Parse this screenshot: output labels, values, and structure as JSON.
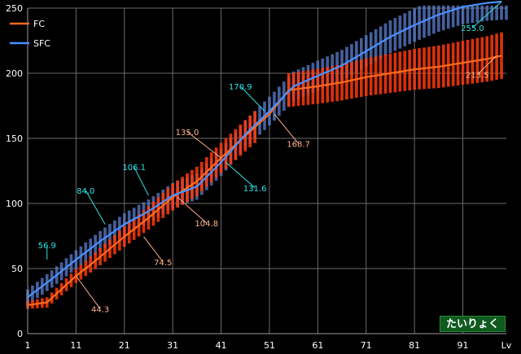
{
  "chart_data": {
    "type": "line",
    "xlabel": "Lv",
    "ylim": [
      0,
      250
    ],
    "xlim": [
      1,
      100
    ],
    "x_ticks": [
      1,
      11,
      21,
      31,
      41,
      51,
      61,
      71,
      81,
      91
    ],
    "y_ticks": [
      0,
      50,
      100,
      150,
      200,
      250
    ],
    "grid": true,
    "legend": "top-left",
    "badge": "たいりょく",
    "series": [
      {
        "name": "FC",
        "color": "#ff6a1e",
        "band_color": "#ff3a0a",
        "x": [
          1,
          5,
          11,
          15,
          21,
          26,
          31,
          36,
          41,
          46,
          51,
          55,
          61,
          66,
          71,
          76,
          81,
          86,
          91,
          96,
          99
        ],
        "y": [
          22,
          24,
          44.3,
          56,
          74.5,
          89,
          104.8,
          117,
          135,
          152,
          168.7,
          187,
          190,
          193,
          197,
          200,
          203,
          205,
          208,
          211,
          213.5
        ],
        "band_x": [
          1,
          48
        ],
        "band_x2": [
          55,
          99
        ],
        "band_half_width": [
          3,
          11,
          14,
          18
        ]
      },
      {
        "name": "SFC",
        "color": "#4a90ff",
        "band_color": "#5b7fd0",
        "x": [
          1,
          6,
          11,
          16,
          21,
          26,
          31,
          36,
          41,
          46,
          51,
          56,
          61,
          66,
          71,
          76,
          81,
          86,
          91,
          96,
          99
        ],
        "y": [
          28,
          42,
          56.9,
          71,
          84,
          94,
          106.1,
          113,
          131.6,
          153,
          170.9,
          190,
          198,
          206,
          217,
          228,
          237,
          245,
          251,
          254,
          255
        ],
        "band_half_width": [
          6,
          10,
          12,
          14
        ]
      }
    ],
    "annotations": [
      {
        "series": "SFC",
        "x": 5,
        "y": 56.9,
        "label": "56.9",
        "lx": 5,
        "ly": 68
      },
      {
        "series": "FC",
        "x": 11,
        "y": 44.3,
        "label": "44.3",
        "lx": 16,
        "ly": 19
      },
      {
        "series": "SFC",
        "x": 17,
        "y": 84.0,
        "label": "84.0",
        "lx": 13,
        "ly": 110
      },
      {
        "series": "FC",
        "x": 25,
        "y": 74.5,
        "label": "74.5",
        "lx": 29,
        "ly": 55
      },
      {
        "series": "SFC",
        "x": 26,
        "y": 106.1,
        "label": "106.1",
        "lx": 23,
        "ly": 128
      },
      {
        "series": "FC",
        "x": 32,
        "y": 104.8,
        "label": "104.8",
        "lx": 38,
        "ly": 85
      },
      {
        "series": "FC",
        "x": 41,
        "y": 135.0,
        "label": "135.0",
        "lx": 34,
        "ly": 155
      },
      {
        "series": "SFC",
        "x": 42,
        "y": 131.6,
        "label": "131.6",
        "lx": 48,
        "ly": 112
      },
      {
        "series": "SFC",
        "x": 50,
        "y": 170.9,
        "label": "170.9",
        "lx": 45,
        "ly": 190
      },
      {
        "series": "FC",
        "x": 52,
        "y": 168.7,
        "label": "168.7",
        "lx": 57,
        "ly": 146
      },
      {
        "series": "SFC",
        "x": 99,
        "y": 255.0,
        "label": "255.0",
        "lx": 93,
        "ly": 235
      },
      {
        "series": "FC",
        "x": 98,
        "y": 213.5,
        "label": "213.5",
        "lx": 94,
        "ly": 199
      }
    ]
  }
}
